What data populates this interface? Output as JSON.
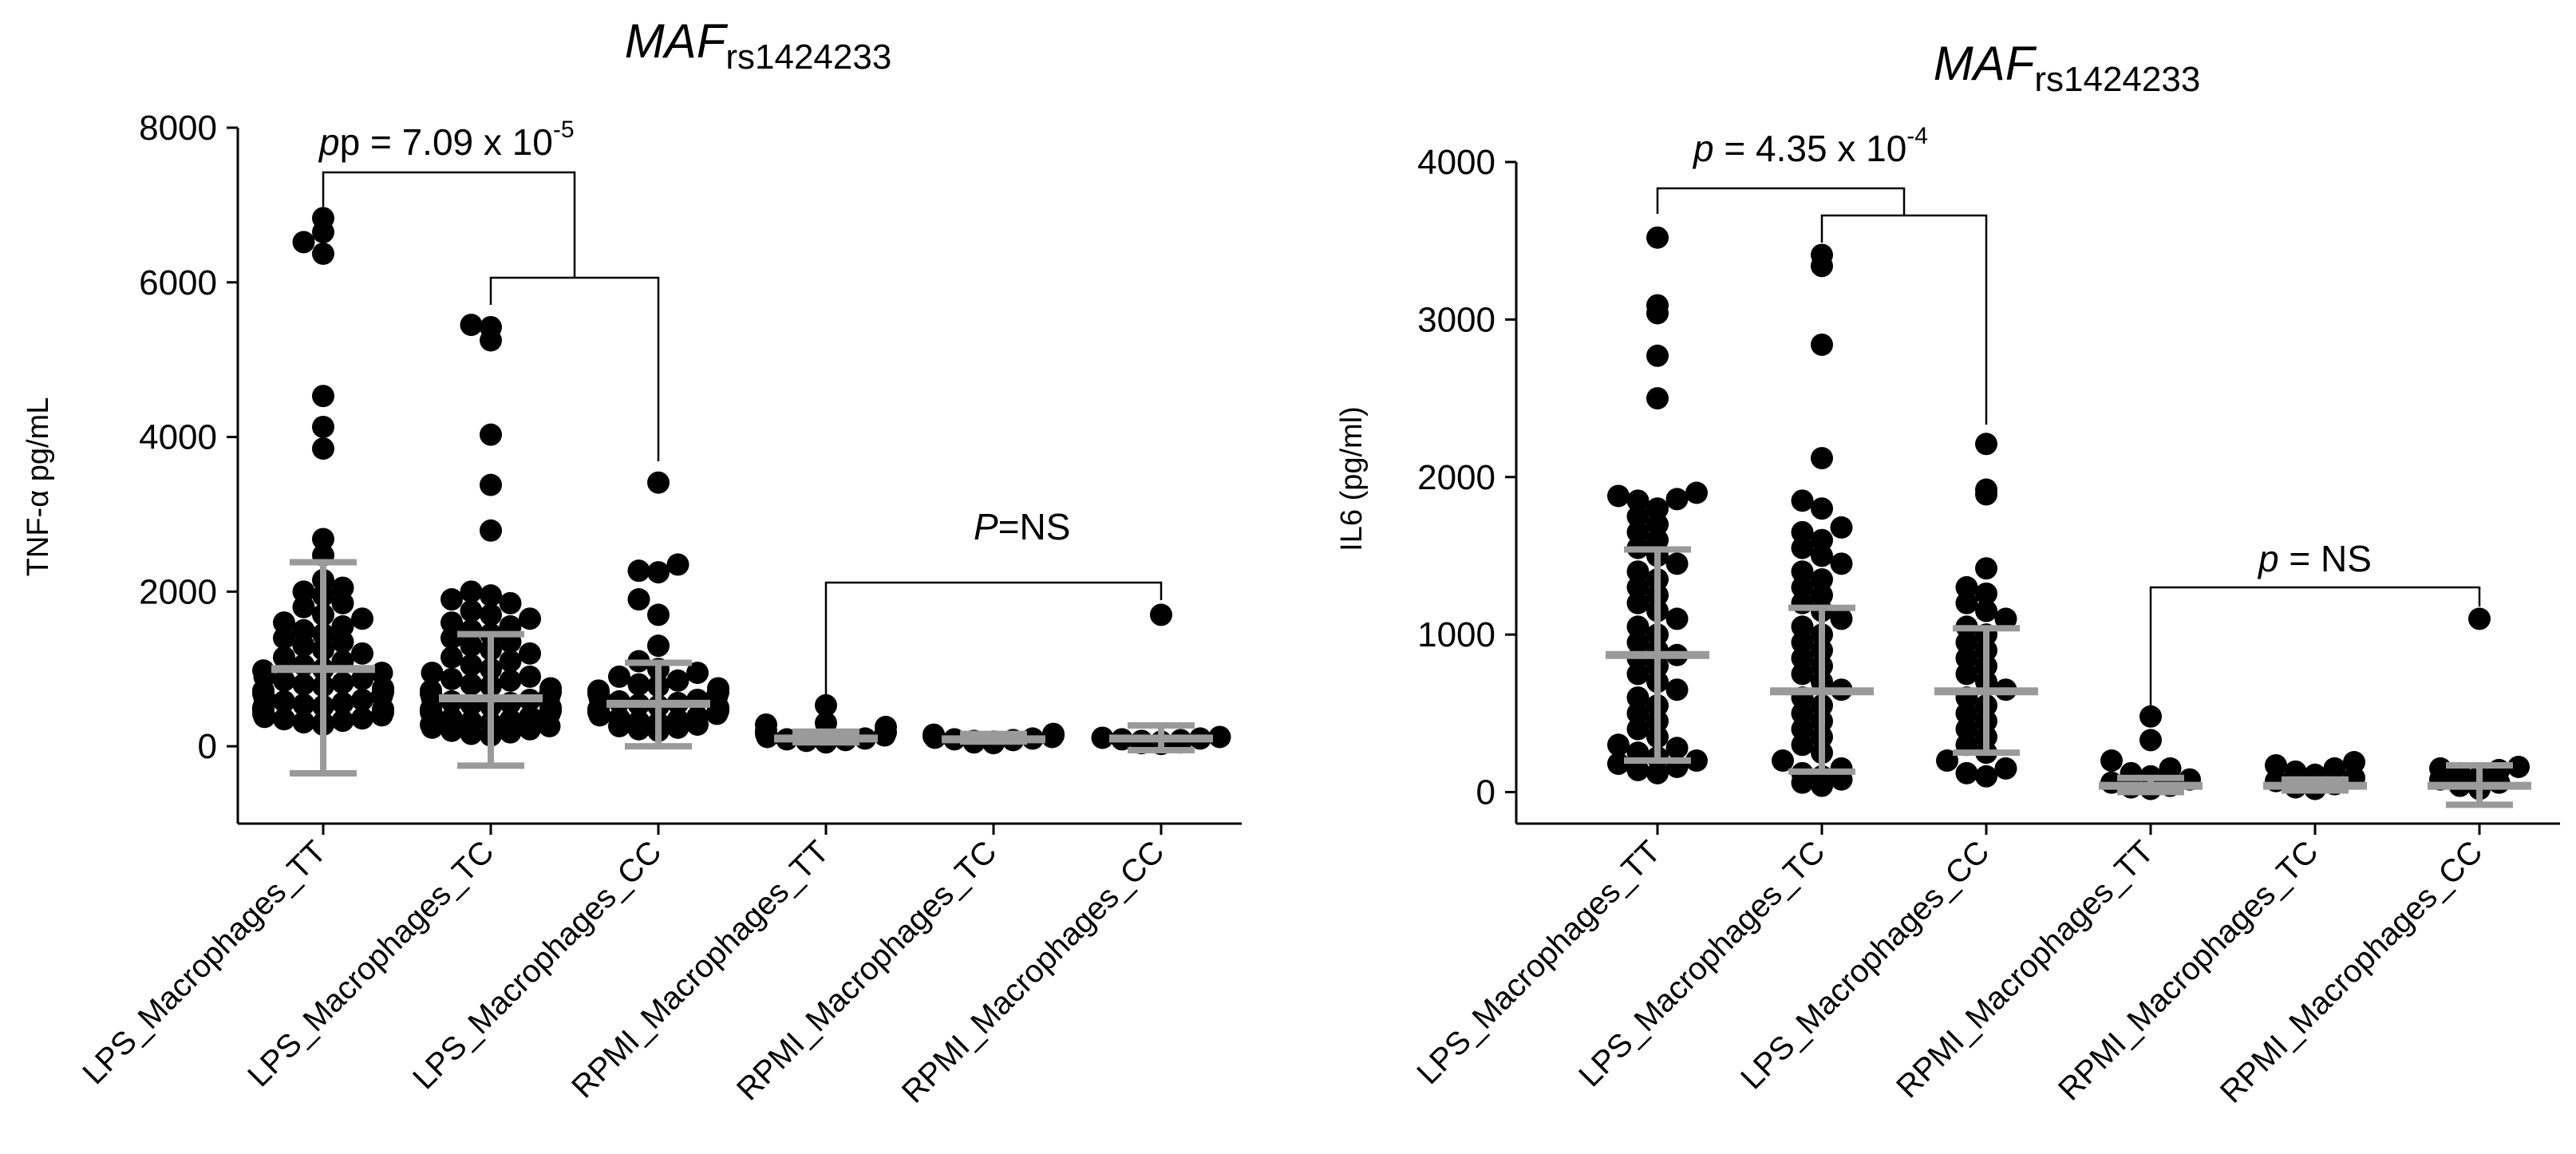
{
  "chart_data": [
    {
      "type": "scatter",
      "title": {
        "gene": "MAF",
        "snp": "rs1424233"
      },
      "ylabel": "TNF-α pg/mL",
      "ylim": [
        -1000,
        8000
      ],
      "yticks": [
        0,
        2000,
        4000,
        6000,
        8000
      ],
      "categories": [
        "LPS_Macrophages_TT",
        "LPS_Macrophages_TC",
        "LPS_Macrophages_CC",
        "RPMI_Macrophages_TT",
        "RPMI_Macrophages_TC",
        "RPMI_Macrophages_CC"
      ],
      "points": [
        [
          6650,
          6830,
          6370,
          6520,
          4530,
          4130,
          3850,
          2680,
          2470,
          2150,
          2050,
          2000,
          1950,
          1850,
          1800,
          1700,
          1650,
          1600,
          1550,
          1500,
          1450,
          1400,
          1350,
          1300,
          1250,
          1200,
          1150,
          1100,
          1050,
          1000,
          980,
          950,
          900,
          870,
          850,
          820,
          800,
          780,
          750,
          720,
          700,
          680,
          650,
          620,
          600,
          580,
          560,
          540,
          520,
          500,
          480,
          460,
          440,
          420,
          400,
          380,
          360,
          350,
          330,
          310,
          300,
          280
        ],
        [
          5450,
          5250,
          5420,
          4030,
          3380,
          2790,
          2000,
          1950,
          1900,
          1850,
          1750,
          1700,
          1650,
          1600,
          1550,
          1500,
          1450,
          1400,
          1350,
          1300,
          1250,
          1200,
          1150,
          1100,
          1050,
          1000,
          950,
          900,
          870,
          850,
          800,
          780,
          750,
          720,
          700,
          680,
          650,
          620,
          600,
          580,
          560,
          540,
          520,
          500,
          480,
          460,
          440,
          420,
          400,
          380,
          360,
          340,
          320,
          300,
          280,
          260,
          240,
          220,
          200,
          180,
          160,
          140
        ],
        [
          3410,
          2350,
          2250,
          2270,
          1900,
          1700,
          1300,
          1100,
          1000,
          950,
          900,
          850,
          800,
          780,
          750,
          720,
          700,
          680,
          650,
          620,
          600,
          580,
          560,
          540,
          520,
          500,
          480,
          460,
          440,
          420,
          400,
          380,
          360,
          340,
          320,
          300,
          280,
          260,
          240,
          220,
          200
        ],
        [
          530,
          280,
          300,
          250,
          200,
          180,
          160,
          140,
          120,
          100,
          90,
          80,
          70,
          60,
          50
        ],
        [
          160,
          150,
          140,
          130,
          120,
          110,
          100,
          90,
          80,
          70,
          60,
          50,
          40
        ],
        [
          1700,
          120,
          110,
          100,
          90,
          80,
          70,
          60,
          50,
          40,
          30
        ]
      ],
      "mean": [
        1000,
        620,
        550,
        100,
        90,
        100
      ],
      "sd_low": [
        -350,
        -250,
        0,
        50,
        60,
        -50
      ],
      "sd_high": [
        2380,
        1450,
        1080,
        190,
        160,
        270
      ],
      "brackets": [
        {
          "label": "p = 7.09 x 10",
          "exponent": "-5",
          "italic_prefix": "p"
        },
        {
          "label": "=NS",
          "italic_prefix": "P"
        }
      ]
    },
    {
      "type": "scatter",
      "title": {
        "gene": "MAF",
        "snp": "rs1424233"
      },
      "ylabel": "IL6 (pg/ml)",
      "ylim": [
        -200,
        4000
      ],
      "yticks": [
        0,
        1000,
        2000,
        3000,
        4000
      ],
      "categories": [
        "LPS_Macrophages_TT",
        "LPS_Macrophages_TC",
        "LPS_Macrophages_CC",
        "RPMI_Macrophages_TT",
        "RPMI_Macrophages_TC",
        "RPMI_Macrophages_CC"
      ],
      "points": [
        [
          3520,
          3090,
          3040,
          2770,
          2500,
          1900,
          1880,
          1860,
          1850,
          1800,
          1750,
          1700,
          1650,
          1600,
          1550,
          1500,
          1450,
          1400,
          1350,
          1300,
          1250,
          1200,
          1150,
          1100,
          1050,
          1000,
          950,
          900,
          870,
          850,
          800,
          750,
          700,
          650,
          600,
          550,
          500,
          450,
          400,
          350,
          300,
          280,
          250,
          220,
          200,
          180,
          160,
          140,
          120
        ],
        [
          3410,
          3340,
          2840,
          2120,
          1850,
          1800,
          1680,
          1650,
          1600,
          1550,
          1500,
          1450,
          1400,
          1350,
          1300,
          1250,
          1200,
          1150,
          1100,
          1050,
          1000,
          950,
          900,
          850,
          800,
          750,
          700,
          650,
          600,
          550,
          500,
          450,
          400,
          350,
          300,
          250,
          200,
          150,
          120,
          100,
          80,
          60,
          40
        ],
        [
          2210,
          1920,
          1890,
          1420,
          1300,
          1260,
          1200,
          1150,
          1100,
          1050,
          1000,
          950,
          900,
          850,
          800,
          750,
          700,
          650,
          600,
          550,
          500,
          450,
          400,
          350,
          300,
          250,
          200,
          150,
          120,
          100
        ],
        [
          480,
          330,
          200,
          150,
          120,
          100,
          80,
          60,
          40,
          30,
          20
        ],
        [
          190,
          170,
          150,
          130,
          110,
          90,
          70,
          50,
          30,
          20
        ],
        [
          1100,
          160,
          150,
          140,
          120,
          100,
          80,
          60,
          40,
          20
        ]
      ],
      "mean": [
        870,
        640,
        640,
        40,
        40,
        40
      ],
      "sd_low": [
        200,
        130,
        250,
        0,
        10,
        -80
      ],
      "sd_high": [
        1540,
        1170,
        1040,
        90,
        80,
        170
      ],
      "brackets": [
        {
          "label": " = 4.35 x 10",
          "exponent": "-4",
          "italic_prefix": "p"
        },
        {
          "label": " = NS",
          "italic_prefix": "p"
        }
      ]
    }
  ]
}
